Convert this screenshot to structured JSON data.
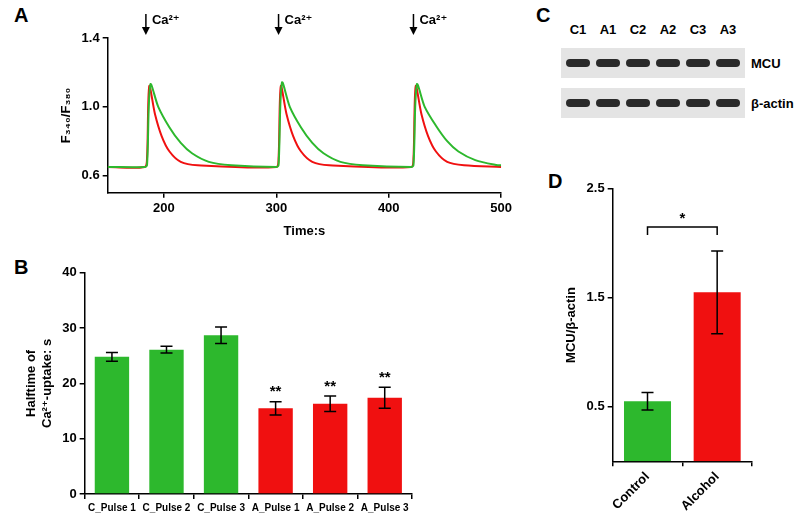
{
  "chart_data": [
    {
      "panel": "A",
      "type": "line",
      "x_label": "Time:s",
      "y_label": "F₃₄₀/F₃₈₀",
      "xlim": [
        150,
        500
      ],
      "xticks": [
        200,
        300,
        400,
        500
      ],
      "ylim": [
        0.5,
        1.4
      ],
      "yticks": [
        0.6,
        {
          "value": 1,
          "label": "1.0"
        },
        1.4
      ],
      "grid": false,
      "annotations": [
        {
          "x": 184,
          "text": "Ca²⁺"
        },
        {
          "x": 302,
          "text": "Ca²⁺"
        },
        {
          "x": 422,
          "text": "Ca²⁺"
        }
      ],
      "series": [
        {
          "color": "#2db82d",
          "x": [
            150,
            183,
            185,
            188,
            195,
            205,
            215,
            225,
            240,
            260,
            300,
            302,
            305,
            312,
            322,
            332,
            342,
            357,
            377,
            420,
            422,
            425,
            432,
            442,
            452,
            462,
            477,
            497,
            500
          ],
          "values": [
            0.65,
            0.65,
            0.66,
            1.13,
            1.0,
            0.88,
            0.79,
            0.73,
            0.68,
            0.66,
            0.65,
            0.66,
            1.14,
            1.0,
            0.88,
            0.79,
            0.73,
            0.68,
            0.66,
            0.65,
            0.66,
            1.13,
            1.0,
            0.89,
            0.8,
            0.74,
            0.69,
            0.66,
            0.66
          ]
        },
        {
          "color": "#f01010",
          "x": [
            150,
            183,
            185,
            187,
            192,
            198,
            205,
            215,
            230,
            300,
            302,
            304,
            309,
            315,
            322,
            332,
            347,
            420,
            422,
            424,
            429,
            435,
            442,
            452,
            467,
            500
          ],
          "values": [
            0.65,
            0.65,
            0.7,
            1.12,
            0.96,
            0.83,
            0.74,
            0.68,
            0.66,
            0.65,
            0.7,
            1.12,
            0.96,
            0.83,
            0.74,
            0.68,
            0.66,
            0.65,
            0.7,
            1.12,
            0.96,
            0.83,
            0.74,
            0.68,
            0.66,
            0.65
          ]
        }
      ]
    },
    {
      "panel": "B",
      "type": "bar",
      "y_label": [
        "Halftime of",
        "Ca²⁺-uptake: s"
      ],
      "categories": [
        "C_Pulse 1",
        "C_Pulse 2",
        "C_Pulse 3",
        "A_Pulse 1",
        "A_Pulse 2",
        "A_Pulse 3"
      ],
      "values": [
        24.8,
        26.1,
        28.7,
        15.5,
        16.3,
        17.4
      ],
      "errors": [
        0.8,
        0.6,
        1.5,
        1.2,
        1.4,
        1.9
      ],
      "colors": [
        "#2db82d",
        "#2db82d",
        "#2db82d",
        "#f01010",
        "#f01010",
        "#f01010"
      ],
      "ylim": [
        0,
        40
      ],
      "yticks": [
        0,
        10,
        20,
        30,
        40
      ],
      "grid": false,
      "annotations": [
        {
          "category": "A_Pulse 1",
          "text": "**"
        },
        {
          "category": "A_Pulse 2",
          "text": "**"
        },
        {
          "category": "A_Pulse 3",
          "text": "**"
        }
      ]
    },
    {
      "panel": "D",
      "type": "bar",
      "y_label": "MCU/β-actin",
      "categories": [
        "Control",
        "Alcohol"
      ],
      "values": [
        0.55,
        1.55
      ],
      "errors": [
        0.08,
        0.38
      ],
      "colors": [
        "#2db82d",
        "#f01010"
      ],
      "ylim": [
        0,
        2.5
      ],
      "yticks": [
        0.5,
        1.5,
        2.5
      ],
      "grid": false,
      "annotations": [
        {
          "from": "Control",
          "to": "Alcohol",
          "y": 2.15,
          "text": "*"
        }
      ]
    }
  ],
  "blot": {
    "panel": "C",
    "lanes": [
      "C1",
      "A1",
      "C2",
      "A2",
      "C3",
      "A3"
    ],
    "rows": [
      "MCU",
      "β-actin"
    ]
  }
}
